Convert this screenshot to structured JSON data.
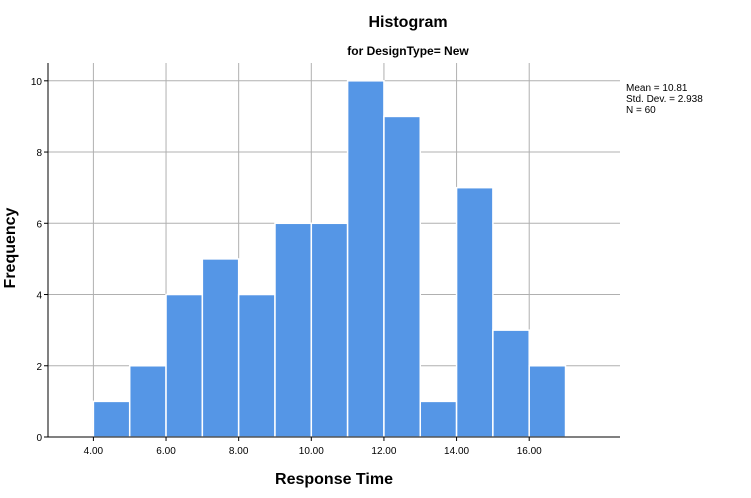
{
  "chart_data": {
    "type": "bar",
    "title": "Histogram",
    "subtitle": "for DesignType= New",
    "xlabel": "Response Time",
    "ylabel": "Frequency",
    "bins": [
      {
        "start": 4,
        "end": 5,
        "count": 1
      },
      {
        "start": 5,
        "end": 6,
        "count": 2
      },
      {
        "start": 6,
        "end": 7,
        "count": 4
      },
      {
        "start": 7,
        "end": 8,
        "count": 5
      },
      {
        "start": 8,
        "end": 9,
        "count": 4
      },
      {
        "start": 9,
        "end": 10,
        "count": 6
      },
      {
        "start": 10,
        "end": 11,
        "count": 6
      },
      {
        "start": 11,
        "end": 12,
        "count": 10
      },
      {
        "start": 12,
        "end": 13,
        "count": 9
      },
      {
        "start": 13,
        "end": 14,
        "count": 1
      },
      {
        "start": 14,
        "end": 15,
        "count": 7
      },
      {
        "start": 15,
        "end": 16,
        "count": 3
      },
      {
        "start": 16,
        "end": 17,
        "count": 2
      }
    ],
    "xlim": [
      2.75,
      18.5
    ],
    "ylim": [
      0,
      10.5
    ],
    "x_ticks": [
      4,
      6,
      8,
      10,
      12,
      14,
      16
    ],
    "x_tick_labels": [
      "4.00",
      "6.00",
      "8.00",
      "10.00",
      "12.00",
      "14.00",
      "16.00"
    ],
    "y_ticks": [
      0,
      2,
      4,
      6,
      8,
      10
    ],
    "y_tick_labels": [
      "0",
      "2",
      "4",
      "6",
      "8",
      "10"
    ],
    "grid": true,
    "legend": "none",
    "bar_color": "#5596e6",
    "stats": {
      "mean": "Mean = 10.81",
      "std_dev": "Std. Dev. = 2.938",
      "n": "N = 60"
    }
  }
}
